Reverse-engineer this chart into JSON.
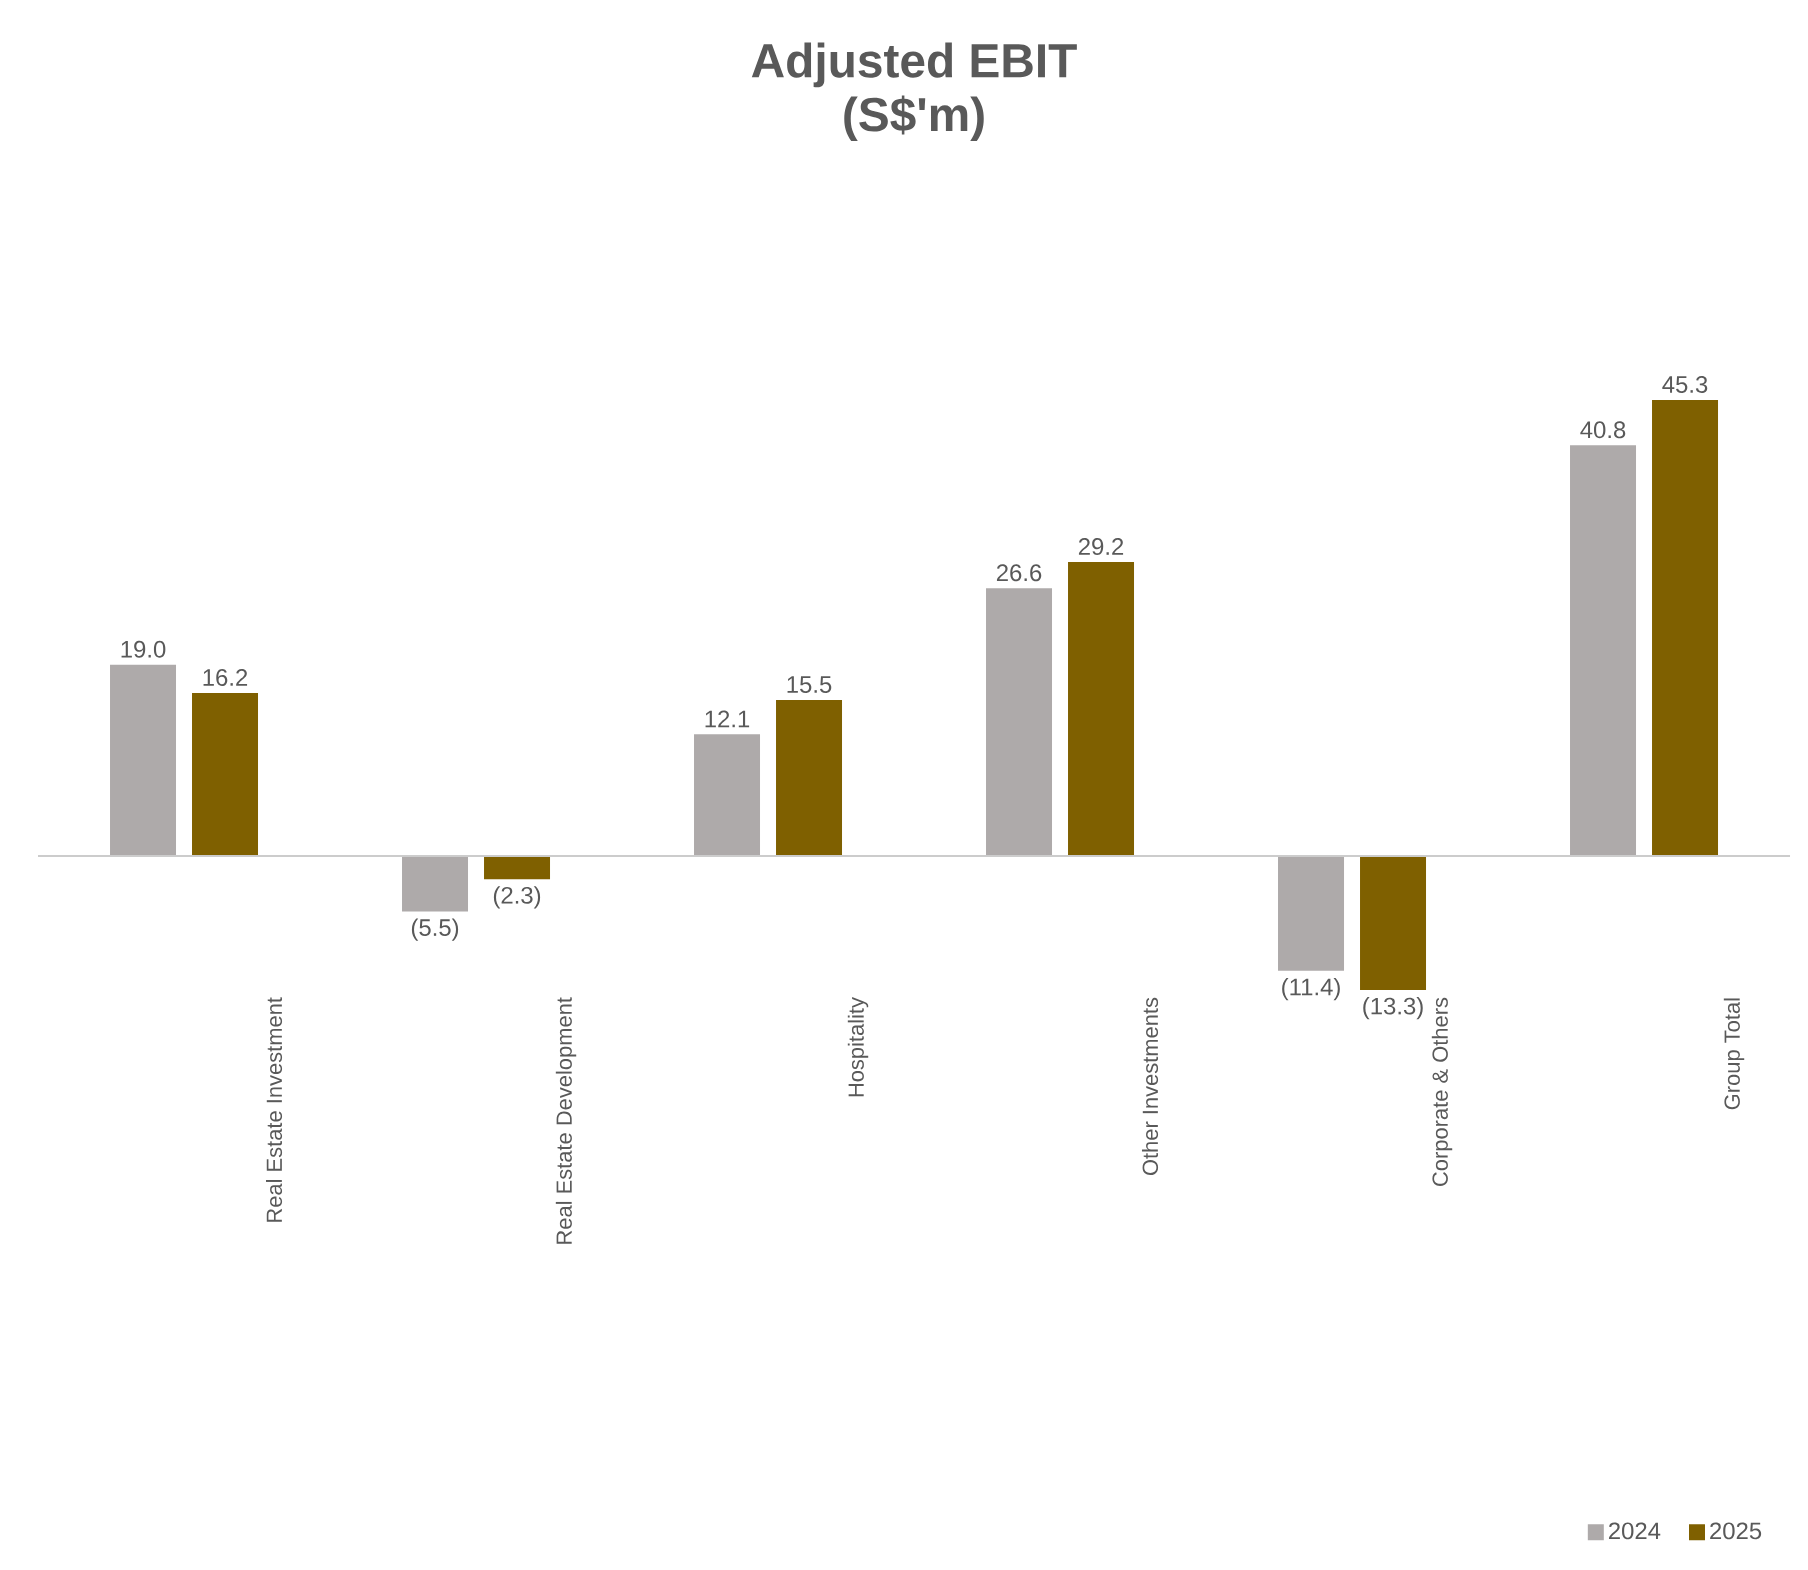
{
  "chart_data": {
    "type": "bar",
    "title": "**Adjusted EBIT**",
    "subtitle": "**(S$'m)**",
    "categories": [
      "Real Estate Investment",
      "Real Estate Development",
      "Hospitality",
      "Other Investments",
      "Corporate & Others",
      "Group Total"
    ],
    "series": [
      {
        "name": "2024",
        "color": "#aeaaaa",
        "values": [
          19.0,
          -5.5,
          12.1,
          26.6,
          -11.4,
          40.8
        ],
        "value_labels": [
          "19.0",
          "(5.5)",
          "12.1",
          "26.6",
          "(11.4)",
          "40.8"
        ]
      },
      {
        "name": "2025",
        "color": "#7f6000",
        "values": [
          16.2,
          -2.3,
          15.5,
          29.2,
          -13.3,
          45.3
        ],
        "value_labels": [
          "16.2",
          "(2.3)",
          "15.5",
          "29.2",
          "(13.3)",
          "45.3"
        ]
      }
    ],
    "legend": "bottom right"
  }
}
